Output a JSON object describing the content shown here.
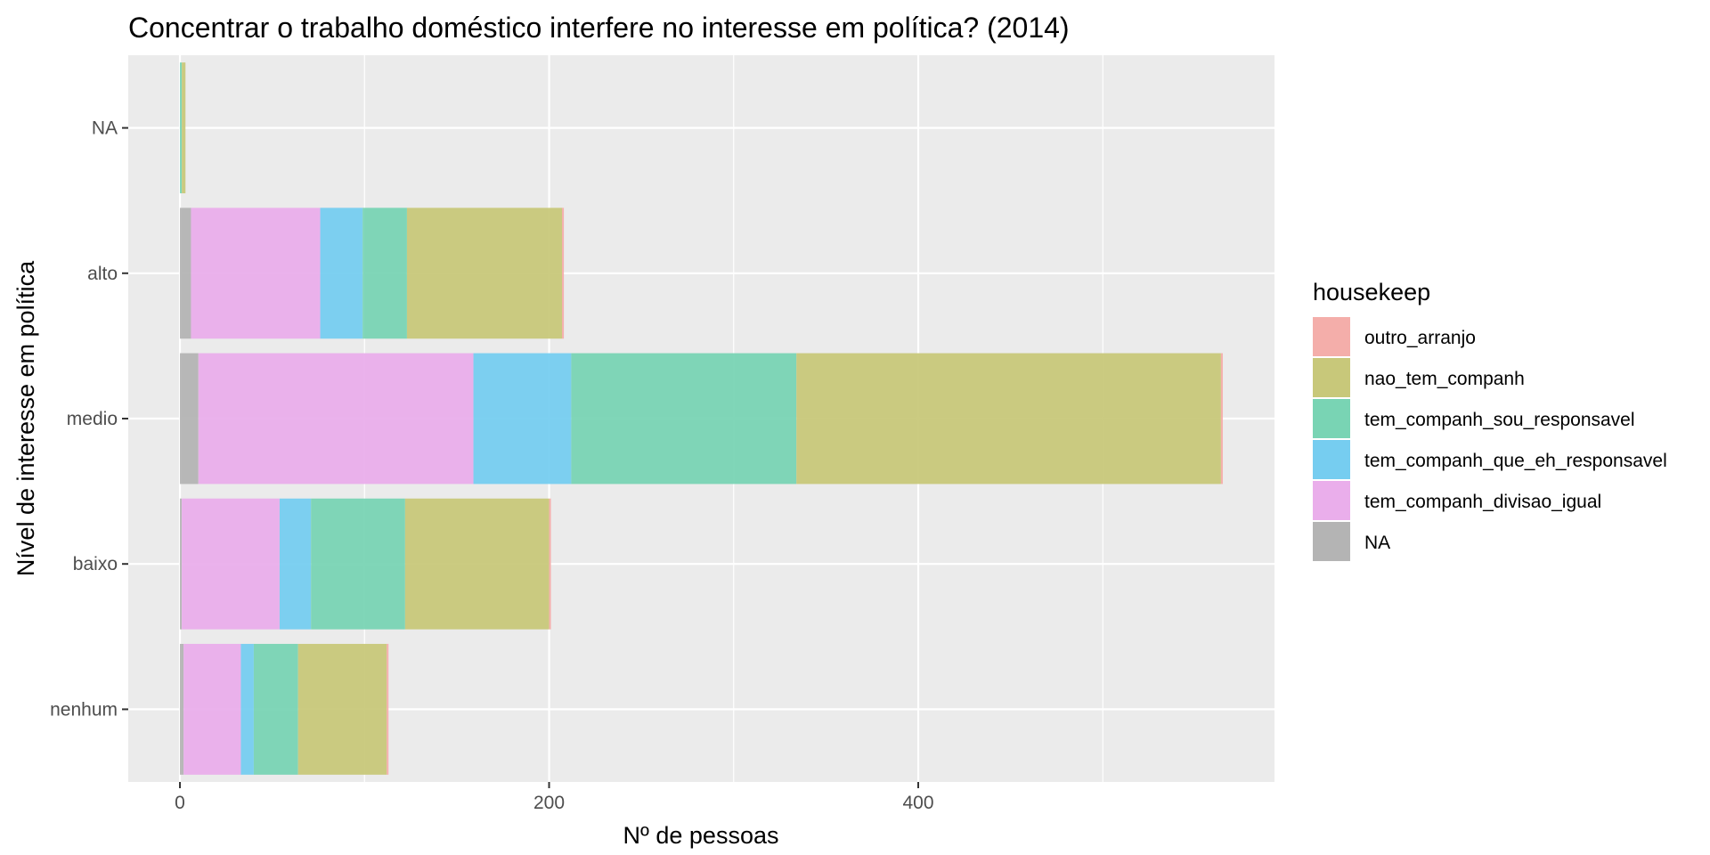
{
  "chart_data": {
    "type": "bar",
    "orientation": "horizontal",
    "stacked": true,
    "title": "Concentrar o trabalho doméstico interfere no interesse em política? (2014)",
    "xlabel": "Nº de pessoas",
    "ylabel": "Nível de interesse em política",
    "categories": [
      "nenhum",
      "baixo",
      "medio",
      "alto",
      "NA"
    ],
    "xlim": [
      -28,
      593
    ],
    "x_ticks": [
      0,
      200,
      400
    ],
    "x_minor_ticks": [
      100,
      300,
      500
    ],
    "grid": true,
    "legend": {
      "title": "housekeep",
      "position": "right",
      "entries": [
        "outro_arranjo",
        "nao_tem_companh",
        "tem_companh_sou_responsavel",
        "tem_companh_que_eh_responsavel",
        "tem_companh_divisao_igual",
        "NA"
      ]
    },
    "series": [
      {
        "name": "NA",
        "color": "#b4b4b4",
        "values": [
          2,
          1,
          10,
          6,
          0
        ]
      },
      {
        "name": "tem_companh_divisao_igual",
        "color": "#eaaeeb",
        "values": [
          31,
          53,
          149,
          70,
          0
        ]
      },
      {
        "name": "tem_companh_que_eh_responsavel",
        "color": "#76cdf0",
        "values": [
          7,
          17,
          53,
          23,
          0
        ]
      },
      {
        "name": "tem_companh_sou_responsavel",
        "color": "#79d4b4",
        "values": [
          24,
          51,
          122,
          24,
          1
        ]
      },
      {
        "name": "nao_tem_companh",
        "color": "#c8c87a",
        "values": [
          48,
          78,
          230,
          84,
          2
        ]
      },
      {
        "name": "outro_arranjo",
        "color": "#f4aeaa",
        "values": [
          1,
          1,
          1,
          1,
          0
        ]
      }
    ]
  }
}
